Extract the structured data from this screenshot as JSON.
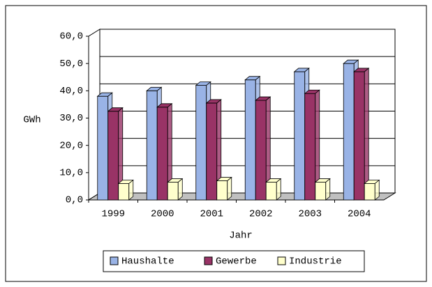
{
  "chart_data": {
    "type": "bar3d",
    "categories": [
      "1999",
      "2000",
      "2001",
      "2002",
      "2003",
      "2004"
    ],
    "series": [
      {
        "name": "Haushalte",
        "color": "#99b3e6",
        "values": [
          38,
          40,
          42,
          44,
          47,
          50
        ]
      },
      {
        "name": "Gewerbe",
        "color": "#993366",
        "values": [
          32.5,
          34,
          35.5,
          36.5,
          39,
          47
        ]
      },
      {
        "name": "Industrie",
        "color": "#ffffcc",
        "values": [
          6,
          6.5,
          7,
          6.5,
          6.5,
          6
        ]
      }
    ],
    "ylabel": "GWh",
    "xlabel": "Jahr",
    "ylim": [
      0,
      60
    ],
    "yticks": [
      {
        "value": 0,
        "label": "0,0"
      },
      {
        "value": 10,
        "label": "10,0"
      },
      {
        "value": 20,
        "label": "20,0"
      },
      {
        "value": 30,
        "label": "30,0"
      },
      {
        "value": 40,
        "label": "40,0"
      },
      {
        "value": 50,
        "label": "50,0"
      },
      {
        "value": 60,
        "label": "60,0"
      }
    ],
    "grid": true,
    "legend": "bottom"
  }
}
